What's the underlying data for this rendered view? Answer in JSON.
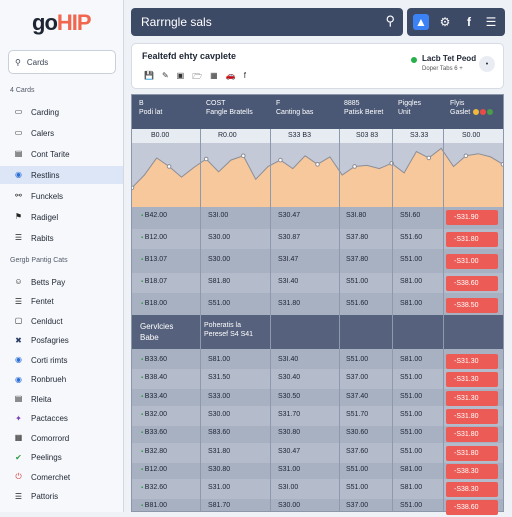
{
  "brand": {
    "part1": "go",
    "part2": "HIP",
    "color_accent": "#f0664f"
  },
  "sidebar": {
    "search_placeholder": "Cards",
    "section1_label": "4 Cards",
    "items1": [
      {
        "label": "Carding",
        "icon": "card-icon"
      },
      {
        "label": "Calers",
        "icon": "card-icon"
      },
      {
        "label": "Cont Tarite",
        "icon": "doc-icon"
      },
      {
        "label": "Restlins",
        "icon": "globe-icon",
        "active": true
      },
      {
        "label": "Funckels",
        "icon": "link-icon"
      },
      {
        "label": "Radigel",
        "icon": "flag-icon"
      },
      {
        "label": "Rabits",
        "icon": "list-icon"
      }
    ],
    "section2_label": "Gergb Pantig Cats",
    "items2": [
      {
        "label": "Betts Pay",
        "icon": "person-icon"
      },
      {
        "label": "Fentet",
        "icon": "list-icon"
      },
      {
        "label": "Cenlduct",
        "icon": "chat-icon"
      },
      {
        "label": "Posfagries",
        "icon": "cross-icon"
      },
      {
        "label": "Corti rimts",
        "icon": "globe-icon"
      },
      {
        "label": "Ronbrueh",
        "icon": "globe-icon"
      },
      {
        "label": "Rleita",
        "icon": "doc-icon"
      },
      {
        "label": "Pactacces",
        "icon": "star-icon"
      },
      {
        "label": "Comorrord",
        "icon": "grid-icon"
      },
      {
        "label": "Peelings",
        "icon": "check-icon"
      },
      {
        "label": "Comerchet",
        "icon": "power-icon"
      },
      {
        "label": "Pattoris",
        "icon": "list-icon"
      }
    ]
  },
  "header": {
    "search_text": "Rarrngle sals",
    "icon_buttons": [
      "bookmark-icon",
      "gear-icon",
      "facebook-icon",
      "menu-icon"
    ]
  },
  "card": {
    "title": "Fealtefd ehty cavplete",
    "tool_icons": [
      "save-icon",
      "pen-icon",
      "screen-icon",
      "folder-icon",
      "table-icon",
      "car-icon",
      "facebook-icon"
    ],
    "status_label": "Lacb Tet Peod",
    "status_sub": "Doper Tabs 6 +"
  },
  "table": {
    "headers": [
      {
        "top": "B",
        "bottom": "Podi lat"
      },
      {
        "top": "COST",
        "bottom": "Fangle Bratells"
      },
      {
        "top": "F",
        "bottom": "Canting bas"
      },
      {
        "top": "8885",
        "bottom": "Patisk Beiret"
      },
      {
        "top": "Pigqles",
        "bottom": "Unit"
      },
      {
        "top": "Flyis",
        "bottom": "Gaslet"
      }
    ],
    "subheader": [
      "B0.00",
      "R0.00",
      "S33 B3",
      "S03 83",
      "S3.33",
      "S0.00"
    ],
    "chart_data": {
      "type": "area",
      "values": [
        18,
        30,
        46,
        38,
        28,
        37,
        45,
        33,
        44,
        48,
        26,
        38,
        44,
        36,
        48,
        40,
        47,
        30,
        38,
        39,
        36,
        41,
        32,
        52,
        46,
        55,
        38,
        48,
        50,
        47,
        40
      ],
      "fill": "#f7c89b",
      "line": "#8b8d97"
    },
    "rows_a": [
      [
        "B42.00",
        "S3I.00",
        "S30.47",
        "S3I.80",
        "S5I.60",
        "-S31.90"
      ],
      [
        "B12.00",
        "S30.00",
        "S30.87",
        "S37.80",
        "S51.60",
        "-S31.80"
      ],
      [
        "B13.07",
        "S30.00",
        "S3I.47",
        "S37.80",
        "S51.00",
        "-S31.00"
      ],
      [
        "B18.07",
        "S81.80",
        "S3I.40",
        "S51.00",
        "S81.00",
        "-S38.60"
      ],
      [
        "B18.00",
        "S51.00",
        "S31.80",
        "S51.60",
        "S81.00",
        "-S38.50"
      ]
    ],
    "section": {
      "label1": "Gervlcies",
      "label2": "Babe",
      "sub1": "Poheratis la",
      "sub2": "Peresef S4 S41"
    },
    "rows_b": [
      [
        "B33.60",
        "S81.00",
        "S3I.40",
        "S51.00",
        "S81.00",
        "-S31.30"
      ],
      [
        "B38.40",
        "S31.50",
        "S30.40",
        "S37.00",
        "S51.00",
        "-S31.30"
      ],
      [
        "B33.40",
        "S33.00",
        "S30.50",
        "S37.40",
        "S51.00",
        "-S31.30"
      ],
      [
        "B32.00",
        "S30.00",
        "S31.70",
        "S51.70",
        "S51.00",
        "-S31.80"
      ],
      [
        "B33.60",
        "S83.60",
        "S30.80",
        "S30.60",
        "S51.00",
        "-S31.80"
      ],
      [
        "B32.80",
        "S31.80",
        "S30.47",
        "S37.60",
        "S51.00",
        "-S31.80"
      ],
      [
        "B12.00",
        "S30.80",
        "S31.00",
        "S51.00",
        "S81.00",
        "-S38.30"
      ],
      [
        "B32.60",
        "S31.00",
        "S3I.00",
        "S51.00",
        "S81.00",
        "-S38.30"
      ],
      [
        "B81.00",
        "S81.70",
        "S30.00",
        "S37.00",
        "S51.00",
        "-S38.60"
      ]
    ],
    "colors": {
      "negative": "#ec5b55",
      "header": "#4a5876"
    }
  }
}
